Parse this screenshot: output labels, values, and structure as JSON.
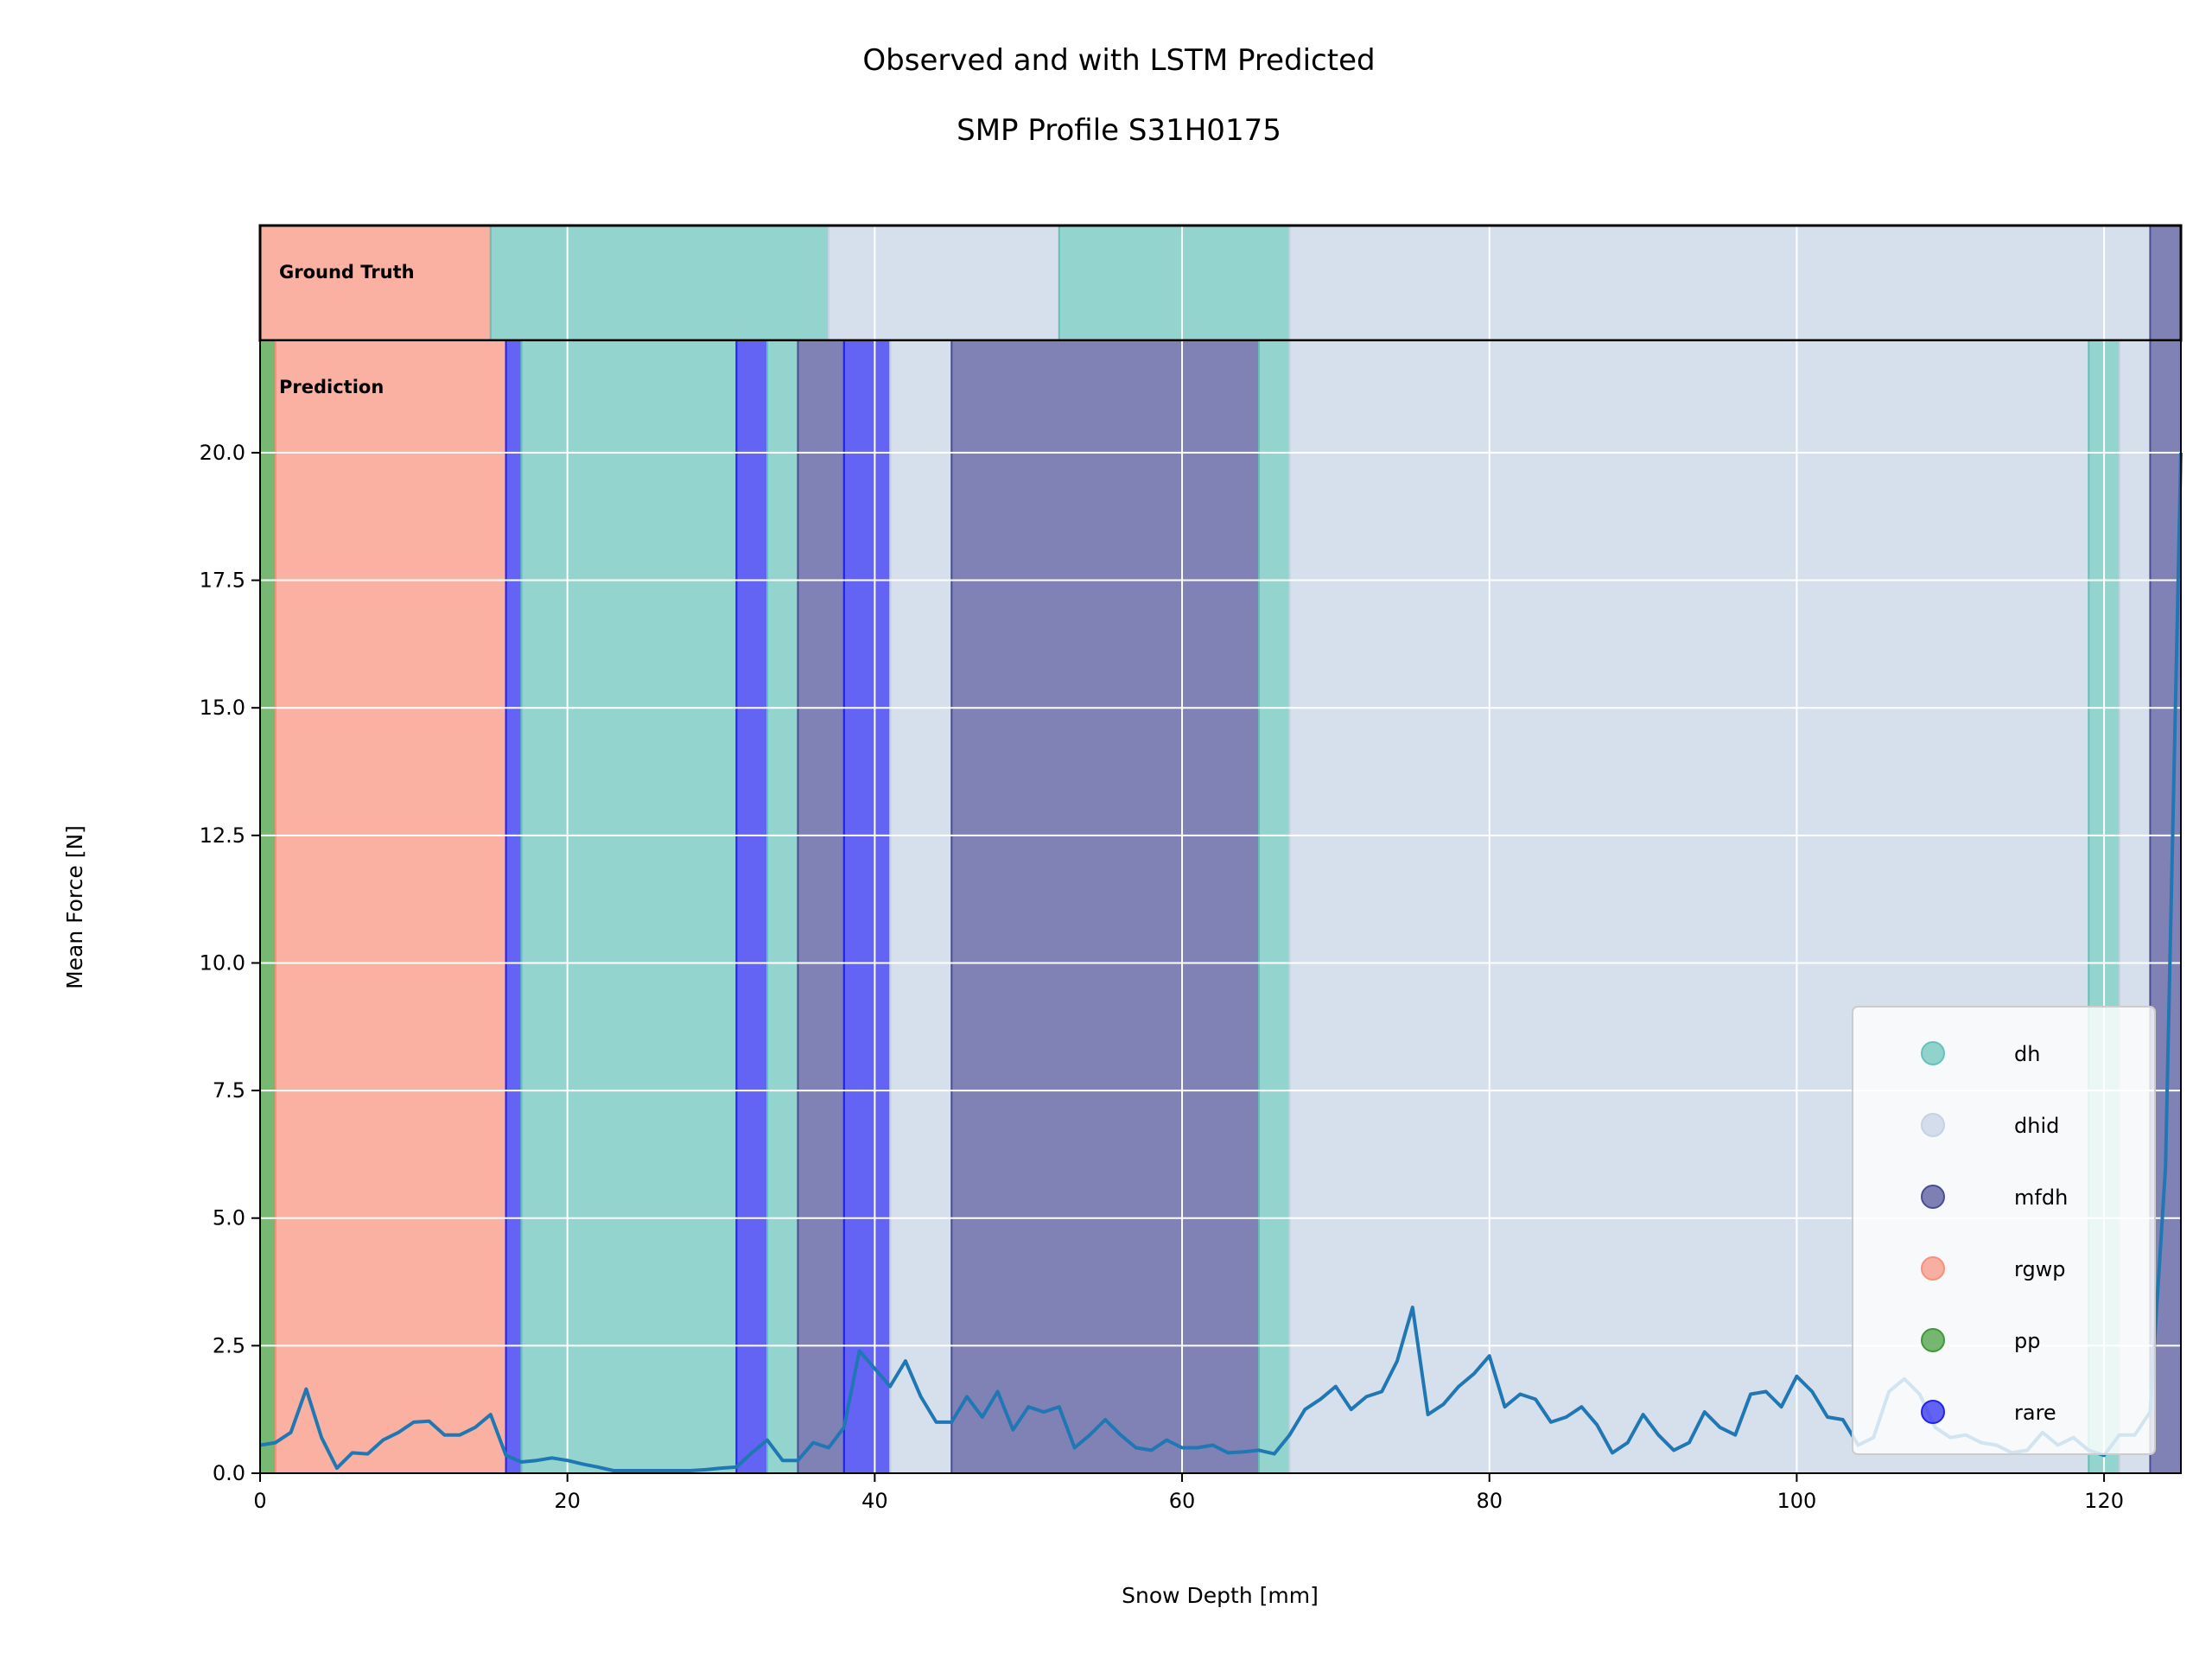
{
  "chart_data": {
    "type": "line",
    "title_line1": "Observed and with LSTM Predicted",
    "title_line2": "SMP Profile S31H0175",
    "xlabel": "Snow Depth [mm]",
    "ylabel": "Mean Force [N]",
    "xlim": [
      0,
      125
    ],
    "ylim": [
      0,
      22.2
    ],
    "xticks": [
      0,
      20,
      40,
      60,
      80,
      100,
      120
    ],
    "yticks": [
      0.0,
      2.5,
      5.0,
      7.5,
      10.0,
      12.5,
      15.0,
      17.5,
      20.0
    ],
    "ytick_labels": [
      "0.0",
      "2.5",
      "5.0",
      "7.5",
      "10.0",
      "12.5",
      "15.0",
      "17.5",
      "20.0"
    ],
    "grid": true,
    "legend_position": "lower right",
    "panel_labels": {
      "ground_truth": "Ground Truth",
      "prediction": "Prediction"
    },
    "classes": [
      {
        "name": "dh",
        "color": "#66c2b9"
      },
      {
        "name": "dhid",
        "color": "#c4d2e4"
      },
      {
        "name": "mfdh",
        "color": "#4a4d95"
      },
      {
        "name": "rgwp",
        "color": "#f8907a"
      },
      {
        "name": "pp",
        "color": "#3d9a36"
      },
      {
        "name": "rare",
        "color": "#2222f0"
      }
    ],
    "ground_truth_segments": [
      {
        "start": 0,
        "end": 15,
        "label": "rgwp"
      },
      {
        "start": 15,
        "end": 37,
        "label": "dh"
      },
      {
        "start": 37,
        "end": 52,
        "label": "dhid"
      },
      {
        "start": 52,
        "end": 67,
        "label": "dh"
      },
      {
        "start": 67,
        "end": 123,
        "label": "dhid"
      },
      {
        "start": 123,
        "end": 125,
        "label": "mfdh"
      }
    ],
    "prediction_segments": [
      {
        "start": 0,
        "end": 1,
        "label": "pp"
      },
      {
        "start": 1,
        "end": 16,
        "label": "rgwp"
      },
      {
        "start": 16,
        "end": 17,
        "label": "rare"
      },
      {
        "start": 17,
        "end": 31,
        "label": "dh"
      },
      {
        "start": 31,
        "end": 33,
        "label": "rare"
      },
      {
        "start": 33,
        "end": 35,
        "label": "dh"
      },
      {
        "start": 35,
        "end": 38,
        "label": "mfdh"
      },
      {
        "start": 38,
        "end": 41,
        "label": "rare"
      },
      {
        "start": 41,
        "end": 45,
        "label": "dhid"
      },
      {
        "start": 45,
        "end": 65,
        "label": "mfdh"
      },
      {
        "start": 65,
        "end": 67,
        "label": "dh"
      },
      {
        "start": 67,
        "end": 119,
        "label": "dhid"
      },
      {
        "start": 119,
        "end": 121,
        "label": "dh"
      },
      {
        "start": 121,
        "end": 123,
        "label": "dhid"
      },
      {
        "start": 123,
        "end": 125,
        "label": "mfdh"
      }
    ],
    "series": [
      {
        "color": "#1f77b4",
        "x": [
          0,
          1,
          2,
          3,
          4,
          5,
          6,
          7,
          8,
          9,
          10,
          11,
          12,
          13,
          14,
          15,
          16,
          17,
          18,
          19,
          20,
          21,
          22,
          23,
          24,
          25,
          26,
          27,
          28,
          29,
          30,
          31,
          32,
          33,
          34,
          35,
          36,
          37,
          38,
          39,
          40,
          41,
          42,
          43,
          44,
          45,
          46,
          47,
          48,
          49,
          50,
          51,
          52,
          53,
          54,
          55,
          56,
          57,
          58,
          59,
          60,
          61,
          62,
          63,
          64,
          65,
          66,
          67,
          68,
          69,
          70,
          71,
          72,
          73,
          74,
          75,
          76,
          77,
          78,
          79,
          80,
          81,
          82,
          83,
          84,
          85,
          86,
          87,
          88,
          89,
          90,
          91,
          92,
          93,
          94,
          95,
          96,
          97,
          98,
          99,
          100,
          101,
          102,
          103,
          104,
          105,
          106,
          107,
          108,
          109,
          110,
          111,
          112,
          113,
          114,
          115,
          116,
          117,
          118,
          119,
          120,
          121,
          122,
          123,
          124,
          125
        ],
        "y": [
          0.55,
          0.6,
          0.8,
          1.65,
          0.7,
          0.1,
          0.4,
          0.38,
          0.65,
          0.8,
          1.0,
          1.02,
          0.75,
          0.75,
          0.9,
          1.15,
          0.35,
          0.22,
          0.25,
          0.3,
          0.25,
          0.18,
          0.12,
          0.05,
          0.05,
          0.05,
          0.05,
          0.05,
          0.05,
          0.07,
          0.1,
          0.12,
          0.4,
          0.65,
          0.25,
          0.25,
          0.6,
          0.5,
          0.9,
          2.4,
          2.05,
          1.7,
          2.2,
          1.5,
          1.0,
          1.0,
          1.5,
          1.1,
          1.6,
          0.85,
          1.3,
          1.2,
          1.3,
          0.5,
          0.75,
          1.05,
          0.75,
          0.5,
          0.45,
          0.65,
          0.5,
          0.5,
          0.55,
          0.4,
          0.42,
          0.45,
          0.38,
          0.75,
          1.25,
          1.45,
          1.7,
          1.25,
          1.5,
          1.6,
          2.2,
          3.25,
          1.15,
          1.35,
          1.7,
          1.95,
          2.3,
          1.3,
          1.55,
          1.45,
          1.0,
          1.1,
          1.3,
          0.95,
          0.4,
          0.6,
          1.15,
          0.75,
          0.45,
          0.6,
          1.2,
          0.9,
          0.75,
          1.55,
          1.6,
          1.3,
          1.9,
          1.6,
          1.1,
          1.05,
          0.55,
          0.7,
          1.6,
          1.85,
          1.55,
          0.9,
          0.7,
          0.75,
          0.6,
          0.55,
          0.4,
          0.45,
          0.8,
          0.55,
          0.7,
          0.45,
          0.35,
          0.75,
          0.75,
          1.2,
          6.0,
          20.0
        ]
      }
    ]
  }
}
